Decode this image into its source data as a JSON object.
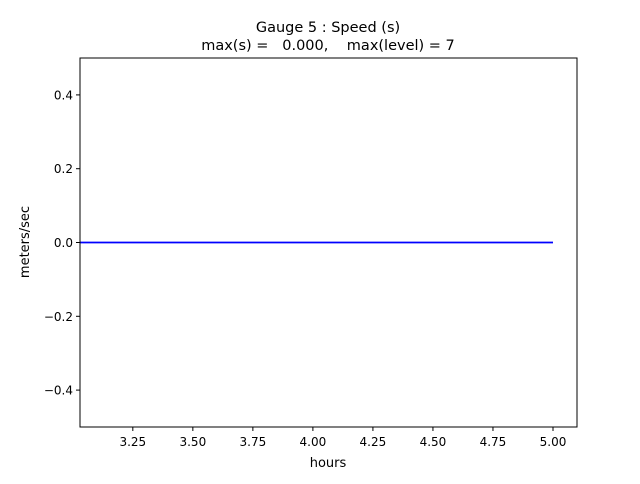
{
  "chart_data": {
    "type": "line",
    "title": "Gauge 5 : Speed (s)",
    "subtitle": "max(s) =   0.000,    max(level) = 7",
    "xlabel": "hours",
    "ylabel": "meters/sec",
    "xlim": [
      3.03,
      5.1
    ],
    "ylim": [
      -0.5,
      0.5
    ],
    "xticks": [
      3.25,
      3.5,
      3.75,
      4.0,
      4.25,
      4.5,
      4.75,
      5.0
    ],
    "xtick_labels": [
      "3.25",
      "3.50",
      "3.75",
      "4.00",
      "4.25",
      "4.50",
      "4.75",
      "5.00"
    ],
    "yticks": [
      -0.4,
      -0.2,
      0.0,
      0.2,
      0.4
    ],
    "ytick_labels": [
      "−0.4",
      "−0.2",
      "0.0",
      "0.2",
      "0.4"
    ],
    "grid": false,
    "series": [
      {
        "color": "#0000ff",
        "x": [
          3.0,
          5.0
        ],
        "y": [
          0.0,
          0.0
        ]
      }
    ]
  }
}
